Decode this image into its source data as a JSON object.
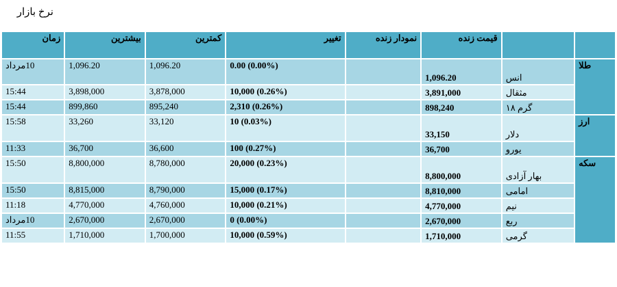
{
  "page": {
    "title": "نرخ بازار"
  },
  "headers": {
    "time": "زمان",
    "high": "بیشترین",
    "low": "کمترین",
    "change": "تغییر",
    "chart": "نمودار زنده",
    "price": "قیمت زنده"
  },
  "categories": {
    "gold": "طلا",
    "currency": "ارز",
    "coin": "سکه"
  },
  "rows": [
    {
      "time": "10مرداد",
      "high": "1,096.20",
      "low": "1,096.20",
      "change": "0.00 (0.00%)",
      "price": "1,096.20",
      "name": "انس"
    },
    {
      "time": "15:44",
      "high": "3,898,000",
      "low": "3,878,000",
      "change": "10,000 (0.26%)",
      "price": "3,891,000",
      "name": "مثقال"
    },
    {
      "time": "15:44",
      "high": "899,860",
      "low": "895,240",
      "change": "2,310 (0.26%)",
      "price": "898,240",
      "name": "گرم ۱۸"
    },
    {
      "time": "15:58",
      "high": "33,260",
      "low": "33,120",
      "change": "10 (0.03%)",
      "price": "33,150",
      "name": "دلار"
    },
    {
      "time": "11:33",
      "high": "36,700",
      "low": "36,600",
      "change": "100 (0.27%)",
      "price": "36,700",
      "name": "یورو"
    },
    {
      "time": "15:50",
      "high": "8,800,000",
      "low": "8,780,000",
      "change": "20,000 (0.23%)",
      "price": "8,800,000",
      "name": "بهار آزادی"
    },
    {
      "time": "15:50",
      "high": "8,815,000",
      "low": "8,790,000",
      "change": "15,000 (0.17%)",
      "price": "8,810,000",
      "name": "امامی"
    },
    {
      "time": "11:18",
      "high": "4,770,000",
      "low": "4,760,000",
      "change": "10,000 (0.21%)",
      "price": "4,770,000",
      "name": "نیم"
    },
    {
      "time": "10مرداد",
      "high": "2,670,000",
      "low": "2,670,000",
      "change": "0 (0.00%)",
      "price": "2,670,000",
      "name": "ربع"
    },
    {
      "time": "11:55",
      "high": "1,710,000",
      "low": "1,700,000",
      "change": "10,000 (0.59%)",
      "price": "1,710,000",
      "name": "گرمی"
    }
  ],
  "colors": {
    "header": "#4fadc7",
    "row_dark": "#a7d6e4",
    "row_light": "#d2ecf3"
  }
}
